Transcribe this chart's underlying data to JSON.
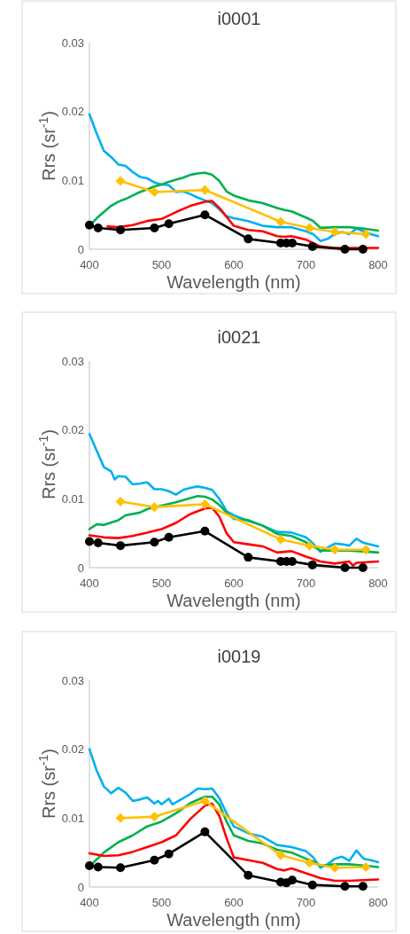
{
  "chart_data": [
    {
      "type": "line",
      "title": "i0001",
      "xlabel": "Wavelength (nm)",
      "ylabel": "Rrs (sr$^{-1}$)",
      "xlim": [
        400,
        800
      ],
      "xticks": [
        400,
        500,
        600,
        700,
        800
      ],
      "ylim": [
        0,
        0.03
      ],
      "yticks": [
        0,
        0.01,
        0.02,
        0.03
      ],
      "grid": false,
      "line_style": "solid",
      "series": [
        {
          "color": "#00b0f0",
          "x": [
            400,
            410,
            420,
            430,
            440,
            450,
            460,
            470,
            480,
            490,
            500,
            510,
            520,
            530,
            540,
            550,
            560,
            570,
            580,
            590,
            600,
            620,
            640,
            660,
            680,
            700,
            710,
            720,
            730,
            740,
            750,
            760,
            770,
            780,
            790,
            800
          ],
          "values": [
            0.0196,
            0.0168,
            0.0143,
            0.0134,
            0.0123,
            0.0121,
            0.0112,
            0.0105,
            0.0103,
            0.0097,
            0.0094,
            0.0093,
            0.0083,
            0.0084,
            0.008,
            0.0075,
            0.0071,
            0.0067,
            0.0058,
            0.0048,
            0.0045,
            0.0041,
            0.0034,
            0.0032,
            0.0032,
            0.0026,
            0.0022,
            0.0012,
            0.0015,
            0.0022,
            0.0025,
            0.0022,
            0.003,
            0.0026,
            0.0022,
            0.0019
          ],
          "marker": "none"
        },
        {
          "color": "#00b050",
          "x": [
            400,
            410,
            420,
            430,
            440,
            450,
            460,
            470,
            480,
            490,
            500,
            510,
            520,
            530,
            540,
            550,
            560,
            570,
            580,
            590,
            600,
            620,
            640,
            660,
            670,
            680,
            700,
            710,
            720,
            740,
            760,
            780,
            800
          ],
          "values": [
            0.0034,
            0.0045,
            0.0054,
            0.0063,
            0.0069,
            0.0073,
            0.0078,
            0.0083,
            0.0087,
            0.0091,
            0.0094,
            0.0098,
            0.0101,
            0.0104,
            0.0108,
            0.011,
            0.0111,
            0.0108,
            0.0099,
            0.0084,
            0.0078,
            0.0071,
            0.0067,
            0.006,
            0.0057,
            0.0055,
            0.0046,
            0.0041,
            0.0031,
            0.0032,
            0.0032,
            0.003,
            0.0027
          ],
          "marker": "none"
        },
        {
          "color": "#ff0000",
          "x": [
            425,
            440,
            460,
            480,
            500,
            520,
            540,
            560,
            570,
            580,
            590,
            600,
            620,
            640,
            660,
            670,
            680,
            700,
            720,
            740,
            800
          ],
          "values": [
            0.0033,
            0.0032,
            0.0035,
            0.0041,
            0.0044,
            0.0054,
            0.0063,
            0.0069,
            0.007,
            0.006,
            0.0047,
            0.0034,
            0.0028,
            0.0026,
            0.0019,
            0.0018,
            0.0019,
            0.0014,
            0.0004,
            0.0002,
            0.0002
          ],
          "marker": "none"
        },
        {
          "color": "#ffc000",
          "x": [
            443,
            490,
            560,
            665,
            705,
            740,
            783
          ],
          "values": [
            0.0099,
            0.0083,
            0.0086,
            0.004,
            0.0031,
            0.0025,
            0.0022
          ],
          "marker": "diamond"
        },
        {
          "color": "#000000",
          "x": [
            400,
            412,
            443,
            490,
            510,
            560,
            620,
            665,
            673,
            681,
            709,
            754,
            779
          ],
          "values": [
            0.0035,
            0.0031,
            0.0028,
            0.0031,
            0.0037,
            0.005,
            0.0015,
            0.0009,
            0.0009,
            0.0009,
            0.0004,
            0,
            0
          ],
          "marker": "circle"
        }
      ]
    },
    {
      "type": "line",
      "title": "i0021",
      "xlabel": "Wavelength (nm)",
      "ylabel": "Rrs (sr$^{-1}$)",
      "xlim": [
        400,
        800
      ],
      "xticks": [
        400,
        500,
        600,
        700,
        800
      ],
      "ylim": [
        0,
        0.03
      ],
      "yticks": [
        0,
        0.01,
        0.02,
        0.03
      ],
      "grid": false,
      "line_style": "solid",
      "series": [
        {
          "color": "#00b0f0",
          "x": [
            400,
            410,
            420,
            430,
            435,
            440,
            450,
            460,
            470,
            480,
            490,
            500,
            510,
            520,
            530,
            540,
            550,
            560,
            570,
            580,
            590,
            600,
            620,
            640,
            660,
            680,
            700,
            710,
            720,
            730,
            740,
            750,
            760,
            770,
            780,
            800
          ],
          "values": [
            0.0194,
            0.017,
            0.0146,
            0.014,
            0.0128,
            0.0133,
            0.0132,
            0.0121,
            0.0122,
            0.0124,
            0.0114,
            0.0114,
            0.0111,
            0.0106,
            0.0113,
            0.0116,
            0.0118,
            0.0116,
            0.0113,
            0.01,
            0.0082,
            0.0076,
            0.0068,
            0.0061,
            0.0052,
            0.0051,
            0.0044,
            0.0035,
            0.0023,
            0.0029,
            0.0035,
            0.0034,
            0.0032,
            0.0042,
            0.0036,
            0.0031
          ],
          "marker": "none"
        },
        {
          "color": "#00b050",
          "x": [
            400,
            410,
            420,
            440,
            450,
            470,
            480,
            500,
            520,
            540,
            550,
            560,
            570,
            580,
            590,
            600,
            620,
            640,
            660,
            680,
            700,
            710,
            720,
            740,
            760,
            800
          ],
          "values": [
            0.0056,
            0.0063,
            0.0062,
            0.0069,
            0.0076,
            0.008,
            0.0085,
            0.009,
            0.0095,
            0.0101,
            0.0104,
            0.0103,
            0.0099,
            0.0091,
            0.008,
            0.0071,
            0.0069,
            0.0061,
            0.0049,
            0.0046,
            0.0037,
            0.0031,
            0.0025,
            null,
            0.0025,
            0.0022
          ],
          "marker": "none"
        },
        {
          "color": "#ff0000",
          "x": [
            400,
            420,
            440,
            460,
            480,
            500,
            520,
            540,
            560,
            570,
            580,
            590,
            600,
            620,
            640,
            660,
            680,
            700,
            720,
            740,
            760,
            765,
            770,
            800
          ],
          "values": [
            0.0047,
            0.0044,
            0.0043,
            0.0046,
            0.0051,
            0.0056,
            0.0065,
            0.0078,
            0.0086,
            0.0087,
            0.0074,
            0.005,
            0.0037,
            0.0034,
            0.0031,
            0.0022,
            0.0024,
            0.0016,
            0.0009,
            0.0006,
            0.0009,
            0.0003,
            0.0007,
            0.0009
          ],
          "marker": "none"
        },
        {
          "color": "#ffc000",
          "x": [
            443,
            490,
            560,
            665,
            705,
            740,
            783
          ],
          "values": [
            0.0096,
            0.0088,
            0.0092,
            0.0041,
            0.0032,
            0.0026,
            0.0026
          ],
          "marker": "diamond"
        },
        {
          "color": "#000000",
          "x": [
            400,
            412,
            443,
            490,
            510,
            560,
            620,
            665,
            673,
            681,
            709,
            754,
            779
          ],
          "values": [
            0.0038,
            0.0036,
            0.0032,
            0.0037,
            0.0044,
            0.0053,
            0.0015,
            0.0009,
            0.0009,
            0.0009,
            0.0004,
            0,
            0
          ],
          "marker": "circle"
        }
      ]
    },
    {
      "type": "line",
      "title": "i0019",
      "xlabel": "Wavelength (nm)",
      "ylabel": "Rrs (sr$^{-1}$)",
      "xlim": [
        400,
        800
      ],
      "xticks": [
        400,
        500,
        600,
        700,
        800
      ],
      "ylim": [
        0,
        0.03
      ],
      "yticks": [
        0,
        0.01,
        0.02,
        0.03
      ],
      "grid": false,
      "line_style": "solid",
      "series": [
        {
          "color": "#00b0f0",
          "x": [
            400,
            410,
            420,
            430,
            440,
            450,
            460,
            470,
            480,
            490,
            495,
            500,
            510,
            515,
            530,
            540,
            550,
            560,
            570,
            580,
            590,
            600,
            620,
            640,
            660,
            680,
            700,
            710,
            720,
            730,
            740,
            750,
            760,
            770,
            780,
            790,
            800
          ],
          "values": [
            0.02,
            0.0169,
            0.0146,
            0.0136,
            0.0144,
            0.0137,
            0.0125,
            0.0127,
            0.013,
            0.0121,
            0.0125,
            0.012,
            0.0128,
            0.012,
            0.0129,
            0.0135,
            0.0143,
            0.0142,
            0.0143,
            0.0129,
            0.0107,
            0.0088,
            0.0078,
            0.0073,
            0.0061,
            0.0058,
            0.0052,
            0.0043,
            0.0028,
            0.0033,
            0.0041,
            0.0044,
            0.0038,
            0.0053,
            0.0041,
            0.0039,
            0.0036
          ],
          "marker": "none"
        },
        {
          "color": "#00b050",
          "x": [
            400,
            420,
            440,
            460,
            480,
            500,
            520,
            540,
            560,
            570,
            580,
            590,
            600,
            620,
            640,
            660,
            680,
            700,
            710,
            720,
            740,
            760,
            800
          ],
          "values": [
            0.003,
            0.005,
            0.0065,
            0.0075,
            0.0088,
            0.0095,
            0.0107,
            0.0122,
            0.0131,
            0.0131,
            0.012,
            0.0095,
            0.0075,
            0.0067,
            0.0063,
            0.0054,
            0.005,
            0.0041,
            0.0037,
            0.0031,
            0.0033,
            0.0033,
            0.0029
          ],
          "marker": "none"
        },
        {
          "color": "#ff0000",
          "x": [
            400,
            420,
            440,
            460,
            480,
            500,
            520,
            540,
            560,
            570,
            580,
            590,
            600,
            620,
            640,
            660,
            670,
            680,
            700,
            720,
            740,
            760,
            800
          ],
          "values": [
            0.0049,
            0.0045,
            0.0046,
            0.0051,
            0.0058,
            0.0065,
            0.0075,
            0.0099,
            0.0118,
            0.0121,
            0.0103,
            0.0071,
            0.0043,
            0.0039,
            0.0035,
            0.0026,
            0.0024,
            0.0027,
            0.002,
            0.0013,
            0.0009,
            0.0009,
            0.0011
          ],
          "marker": "none"
        },
        {
          "color": "#ffc000",
          "x": [
            443,
            490,
            560,
            665,
            705,
            740,
            783
          ],
          "values": [
            0.01,
            0.0102,
            0.0125,
            0.0046,
            0.0035,
            0.0028,
            0.0029
          ],
          "marker": "diamond"
        },
        {
          "color": "#000000",
          "x": [
            400,
            412,
            443,
            490,
            510,
            560,
            620,
            665,
            673,
            681,
            709,
            754,
            779
          ],
          "values": [
            0.0031,
            0.0029,
            0.0028,
            0.0039,
            0.0048,
            0.008,
            0.0017,
            0.0007,
            0.0006,
            0.001,
            0.0003,
            0.0001,
            0.0001
          ],
          "marker": "circle"
        }
      ]
    }
  ]
}
